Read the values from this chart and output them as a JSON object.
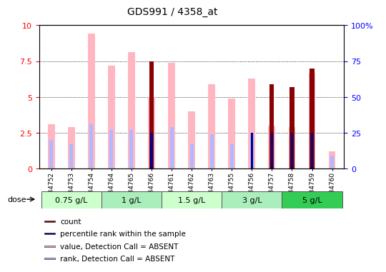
{
  "title": "GDS991 / 4358_at",
  "samples": [
    "GSM34752",
    "GSM34753",
    "GSM34754",
    "GSM34764",
    "GSM34765",
    "GSM34766",
    "GSM34761",
    "GSM34762",
    "GSM34763",
    "GSM34755",
    "GSM34756",
    "GSM34757",
    "GSM34758",
    "GSM34759",
    "GSM34760"
  ],
  "value_absent": [
    3.1,
    2.9,
    9.4,
    7.2,
    8.1,
    5.0,
    7.4,
    4.0,
    5.9,
    4.9,
    6.3,
    null,
    null,
    null,
    null
  ],
  "rank_absent_y2": [
    20,
    17,
    31,
    27,
    27,
    null,
    29,
    17,
    24,
    17,
    25,
    null,
    null,
    null,
    9
  ],
  "count": [
    null,
    null,
    null,
    null,
    null,
    7.5,
    null,
    null,
    null,
    null,
    null,
    5.9,
    5.7,
    7.0,
    null
  ],
  "percentile_y2": [
    null,
    null,
    null,
    null,
    null,
    25,
    null,
    null,
    null,
    null,
    25,
    25,
    25,
    25,
    null
  ],
  "value_absent_extra": [
    null,
    null,
    null,
    null,
    null,
    null,
    null,
    null,
    null,
    null,
    null,
    3.0,
    2.9,
    6.7,
    1.2
  ],
  "dose_groups": [
    {
      "label": "0.75 g/L",
      "start": 0,
      "end": 2,
      "color": "#ccffcc"
    },
    {
      "label": "1 g/L",
      "start": 3,
      "end": 5,
      "color": "#aaeebb"
    },
    {
      "label": "1.5 g/L",
      "start": 6,
      "end": 8,
      "color": "#ccffcc"
    },
    {
      "label": "3 g/L",
      "start": 9,
      "end": 11,
      "color": "#aaeebb"
    },
    {
      "label": "5 g/L",
      "start": 12,
      "end": 14,
      "color": "#33cc55"
    }
  ],
  "ylim": [
    0,
    10
  ],
  "y2lim": [
    0,
    100
  ],
  "yticks": [
    0,
    2.5,
    5.0,
    7.5,
    10
  ],
  "y2ticks": [
    0,
    25,
    50,
    75,
    100
  ],
  "color_count": "#8b0000",
  "color_percentile": "#00008b",
  "color_value_absent": "#ffb6c1",
  "color_rank_absent": "#b0b8ff",
  "bg_color": "#ffffff"
}
